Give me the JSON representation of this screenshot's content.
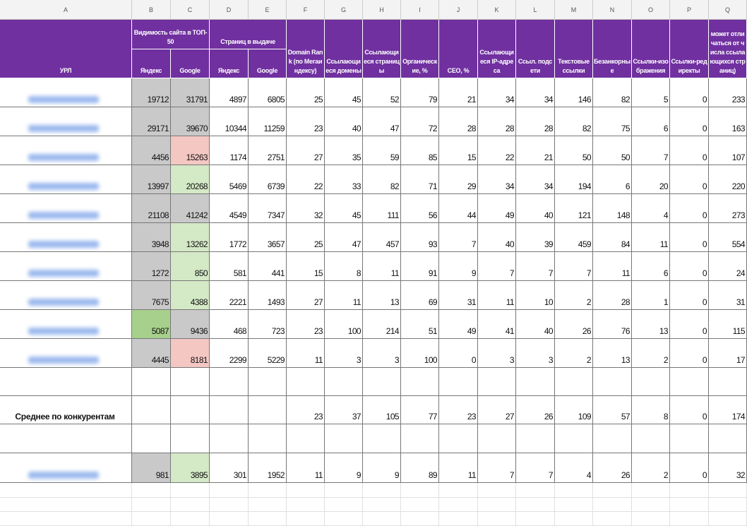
{
  "columns": [
    "A",
    "B",
    "C",
    "D",
    "E",
    "F",
    "G",
    "H",
    "I",
    "J",
    "K",
    "L",
    "M",
    "N",
    "O",
    "P",
    "Q"
  ],
  "header": {
    "url": "УРЛ",
    "visibility": "Видимость сайта в ТОП-50",
    "pages": "Страниц в выдаче",
    "yandex": "Яндекс",
    "google": "Google",
    "metrics": [
      "Domain Rank (по Мегаиндексу)",
      "Ссылающиеся домены",
      "Ссылающиеся страницы",
      "Органические, %",
      "СЕО, %",
      "Ссылающиеся IP-адреса",
      "Ссыл. подсети",
      "Текстовые ссылки",
      "Безанкорные",
      "Ссылки-изображения",
      "Ссылки-редиректы",
      "может отличаться от числа ссылающихся страниц)"
    ]
  },
  "rows": [
    {
      "values": [
        19712,
        31791,
        4897,
        6805,
        25,
        45,
        52,
        79,
        21,
        34,
        34,
        146,
        82,
        5,
        0,
        233
      ],
      "colors": [
        "#c9c9c9",
        "#c9c9c9"
      ]
    },
    {
      "values": [
        29171,
        39670,
        10344,
        11259,
        23,
        40,
        47,
        72,
        28,
        28,
        28,
        82,
        75,
        6,
        0,
        163
      ],
      "colors": [
        "#c9c9c9",
        "#c9c9c9"
      ]
    },
    {
      "values": [
        4456,
        15263,
        1174,
        2751,
        27,
        35,
        59,
        85,
        15,
        22,
        21,
        50,
        50,
        7,
        0,
        107
      ],
      "colors": [
        "#c9c9c9",
        "#f4c7c3"
      ]
    },
    {
      "values": [
        13997,
        20268,
        5469,
        6739,
        22,
        33,
        82,
        71,
        29,
        34,
        34,
        194,
        6,
        20,
        0,
        220
      ],
      "colors": [
        "#c9c9c9",
        "#d4e9c6"
      ]
    },
    {
      "values": [
        21108,
        41242,
        4549,
        7347,
        32,
        45,
        111,
        56,
        44,
        49,
        40,
        121,
        148,
        4,
        0,
        273
      ],
      "colors": [
        "#c9c9c9",
        "#c9c9c9"
      ]
    },
    {
      "values": [
        3948,
        13262,
        1772,
        3657,
        25,
        47,
        457,
        93,
        7,
        40,
        39,
        459,
        84,
        11,
        0,
        554
      ],
      "colors": [
        "#c9c9c9",
        "#d4e9c6"
      ]
    },
    {
      "values": [
        1272,
        850,
        581,
        441,
        15,
        8,
        11,
        91,
        9,
        7,
        7,
        7,
        11,
        6,
        0,
        24
      ],
      "colors": [
        "#c9c9c9",
        "#d4e9c6"
      ]
    },
    {
      "values": [
        7675,
        4388,
        2221,
        1493,
        27,
        11,
        13,
        69,
        31,
        11,
        10,
        2,
        28,
        1,
        0,
        31
      ],
      "colors": [
        "#c9c9c9",
        "#d4e9c6"
      ]
    },
    {
      "values": [
        5087,
        9436,
        468,
        723,
        23,
        100,
        214,
        51,
        49,
        41,
        40,
        26,
        76,
        13,
        0,
        115
      ],
      "colors": [
        "#a8d08d",
        "#c9c9c9"
      ]
    },
    {
      "values": [
        4445,
        8181,
        2299,
        5229,
        11,
        3,
        3,
        100,
        0,
        3,
        3,
        2,
        13,
        2,
        0,
        17
      ],
      "colors": [
        "#c9c9c9",
        "#f4c7c3"
      ]
    }
  ],
  "average": {
    "label": "Среднее по конкурентам",
    "values": [
      23,
      37,
      105,
      77,
      23,
      27,
      26,
      109,
      57,
      8,
      0,
      174
    ]
  },
  "site": {
    "values": [
      981,
      3895,
      301,
      1952,
      11,
      9,
      9,
      89,
      11,
      7,
      7,
      4,
      26,
      2,
      0,
      32
    ],
    "colors": [
      "#c9c9c9",
      "#d4e9c6"
    ]
  }
}
